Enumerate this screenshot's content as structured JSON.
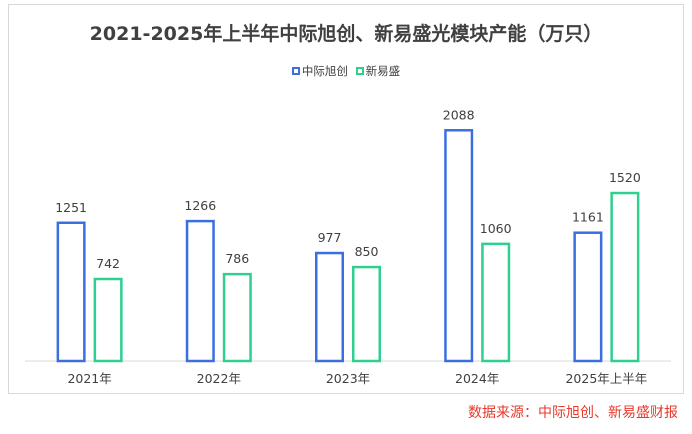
{
  "title": "2021-2025年上半年中际旭创、新易盛光模块产能（万只）",
  "source": "数据来源：中际旭创、新易盛财报",
  "colors": {
    "series1": "#3b6fe0",
    "series2": "#2fcf8f",
    "axis": "#d9d9d9",
    "text": "#404040"
  },
  "chart_data": {
    "type": "bar",
    "title": "2021-2025年上半年中际旭创、新易盛光模块产能（万只）",
    "categories": [
      "2021年",
      "2022年",
      "2023年",
      "2024年",
      "2025年上半年"
    ],
    "series": [
      {
        "name": "中际旭创",
        "values": [
          1251,
          1266,
          977,
          2088,
          1161
        ]
      },
      {
        "name": "新易盛",
        "values": [
          742,
          786,
          850,
          1060,
          1520
        ]
      }
    ],
    "ylim": [
      0,
      2200
    ],
    "grid": false,
    "legend_position": "top-center",
    "data_labels": true
  }
}
